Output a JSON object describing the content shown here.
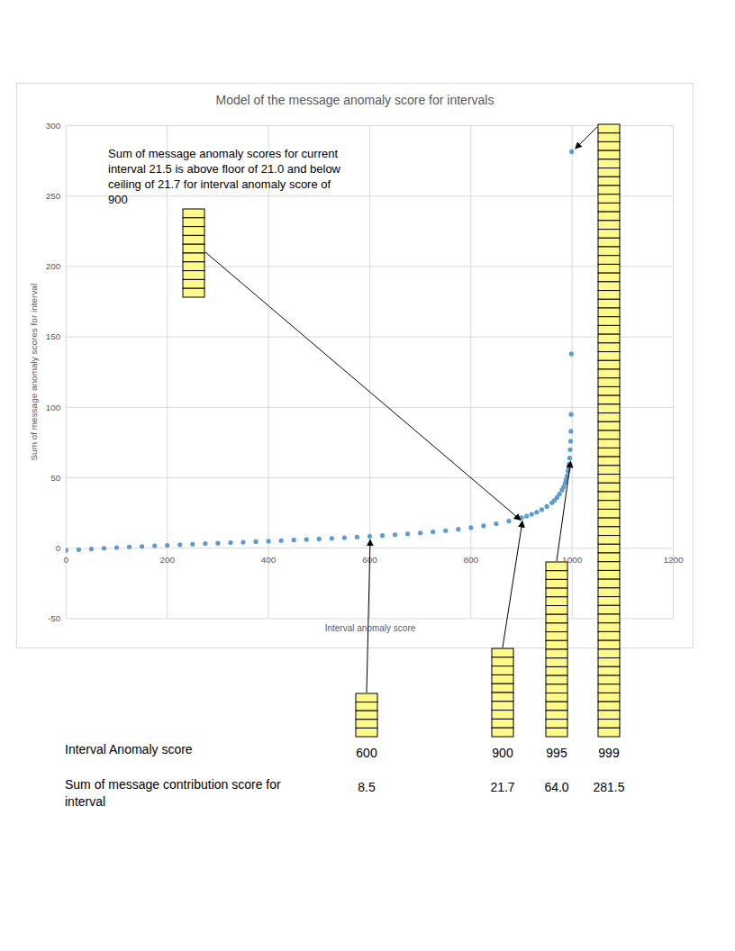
{
  "chart_data": {
    "type": "scatter",
    "title": "Model of the message anomaly score for intervals",
    "x_label": "Interval anomaly score",
    "y_label": "Sum of message anomaly scores for interval",
    "x": [
      0,
      25,
      50,
      75,
      100,
      125,
      150,
      175,
      200,
      225,
      250,
      275,
      300,
      325,
      350,
      375,
      400,
      425,
      450,
      475,
      500,
      525,
      550,
      575,
      600,
      625,
      650,
      675,
      700,
      725,
      750,
      775,
      800,
      825,
      850,
      875,
      900,
      910,
      920,
      930,
      940,
      950,
      960,
      965,
      970,
      975,
      980,
      983,
      986,
      988,
      990,
      992,
      993,
      994,
      995,
      996,
      997,
      997.5,
      998,
      998.5,
      999
    ],
    "values": [
      -1.5,
      -1.0,
      -0.5,
      0,
      0.5,
      0.9,
      1.3,
      1.7,
      2.1,
      2.5,
      2.9,
      3.3,
      3.6,
      4.0,
      4.3,
      4.7,
      5.0,
      5.4,
      5.8,
      6.2,
      6.6,
      7.0,
      7.5,
      8.0,
      8.5,
      9.0,
      9.6,
      10.2,
      10.9,
      11.7,
      12.5,
      13.5,
      14.6,
      15.9,
      17.4,
      19.3,
      21.7,
      22.8,
      24.1,
      25.6,
      27.4,
      29.6,
      32.3,
      34.0,
      36.0,
      38.4,
      41.3,
      43.5,
      46.2,
      48.5,
      51.3,
      54.6,
      56.7,
      59.8,
      64,
      70,
      76,
      83,
      95,
      138,
      281.5
    ],
    "color": "#5b9bd5",
    "marker": "circle",
    "xlim": [
      0,
      1200
    ],
    "xticks": [
      0,
      200,
      400,
      600,
      800,
      1000,
      1200
    ],
    "ylim": [
      -50,
      300
    ],
    "yticks": [
      -50,
      0,
      50,
      100,
      150,
      200,
      250,
      300
    ],
    "grid": true,
    "annotation": [
      "Sum of message anomaly scores for current",
      "interval 21.5 is above floor of 21.0 and below",
      "ceiling of 21.7 for interval anomaly score of",
      "900"
    ],
    "table": {
      "row_labels": [
        "Interval Anomaly score",
        "Sum of message contribution score for interval"
      ],
      "interval_scores": [
        600,
        900,
        995,
        999
      ],
      "sums": [
        8.5,
        21.7,
        {
          "value": 64,
          "label": "64.0"
        },
        281.5
      ]
    }
  }
}
